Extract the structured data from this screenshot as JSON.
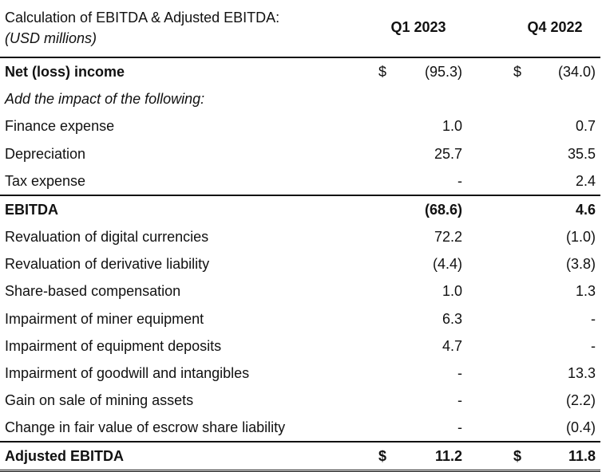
{
  "header": {
    "title": "Calculation of EBITDA & Adjusted EBITDA:",
    "subtitle": "(USD millions)",
    "col1": "Q1 2023",
    "col2": "Q4 2022"
  },
  "rows": [
    {
      "label": "Net (loss) income",
      "cur1": "$",
      "v1": "(95.3)",
      "cur2": "$",
      "v2": "(34.0)"
    },
    {
      "label": "Add the impact of the following:",
      "cur1": "",
      "v1": "",
      "cur2": "",
      "v2": ""
    },
    {
      "label": "Finance expense",
      "cur1": "",
      "v1": "1.0",
      "cur2": "",
      "v2": "0.7"
    },
    {
      "label": "Depreciation",
      "cur1": "",
      "v1": "25.7",
      "cur2": "",
      "v2": "35.5"
    },
    {
      "label": "Tax expense",
      "cur1": "",
      "v1": "-",
      "cur2": "",
      "v2": "2.4"
    },
    {
      "label": "EBITDA",
      "cur1": "",
      "v1": "(68.6)",
      "cur2": "",
      "v2": "4.6"
    },
    {
      "label": "Revaluation of digital currencies",
      "cur1": "",
      "v1": "72.2",
      "cur2": "",
      "v2": "(1.0)"
    },
    {
      "label": "Revaluation of derivative liability",
      "cur1": "",
      "v1": "(4.4)",
      "cur2": "",
      "v2": "(3.8)"
    },
    {
      "label": "Share-based compensation",
      "cur1": "",
      "v1": "1.0",
      "cur2": "",
      "v2": "1.3"
    },
    {
      "label": "Impairment of miner equipment",
      "cur1": "",
      "v1": "6.3",
      "cur2": "",
      "v2": "-"
    },
    {
      "label": "Impairment of equipment deposits",
      "cur1": "",
      "v1": "4.7",
      "cur2": "",
      "v2": "-"
    },
    {
      "label": "Impairment of goodwill and intangibles",
      "cur1": "",
      "v1": "-",
      "cur2": "",
      "v2": "13.3"
    },
    {
      "label": "Gain on sale of mining assets",
      "cur1": "",
      "v1": "-",
      "cur2": "",
      "v2": "(2.2)"
    },
    {
      "label": "Change in fair value of escrow share liability",
      "cur1": "",
      "v1": "-",
      "cur2": "",
      "v2": "(0.4)"
    },
    {
      "label": "Adjusted EBITDA",
      "cur1": "$",
      "v1": "11.2",
      "cur2": "$",
      "v2": "11.8"
    }
  ]
}
